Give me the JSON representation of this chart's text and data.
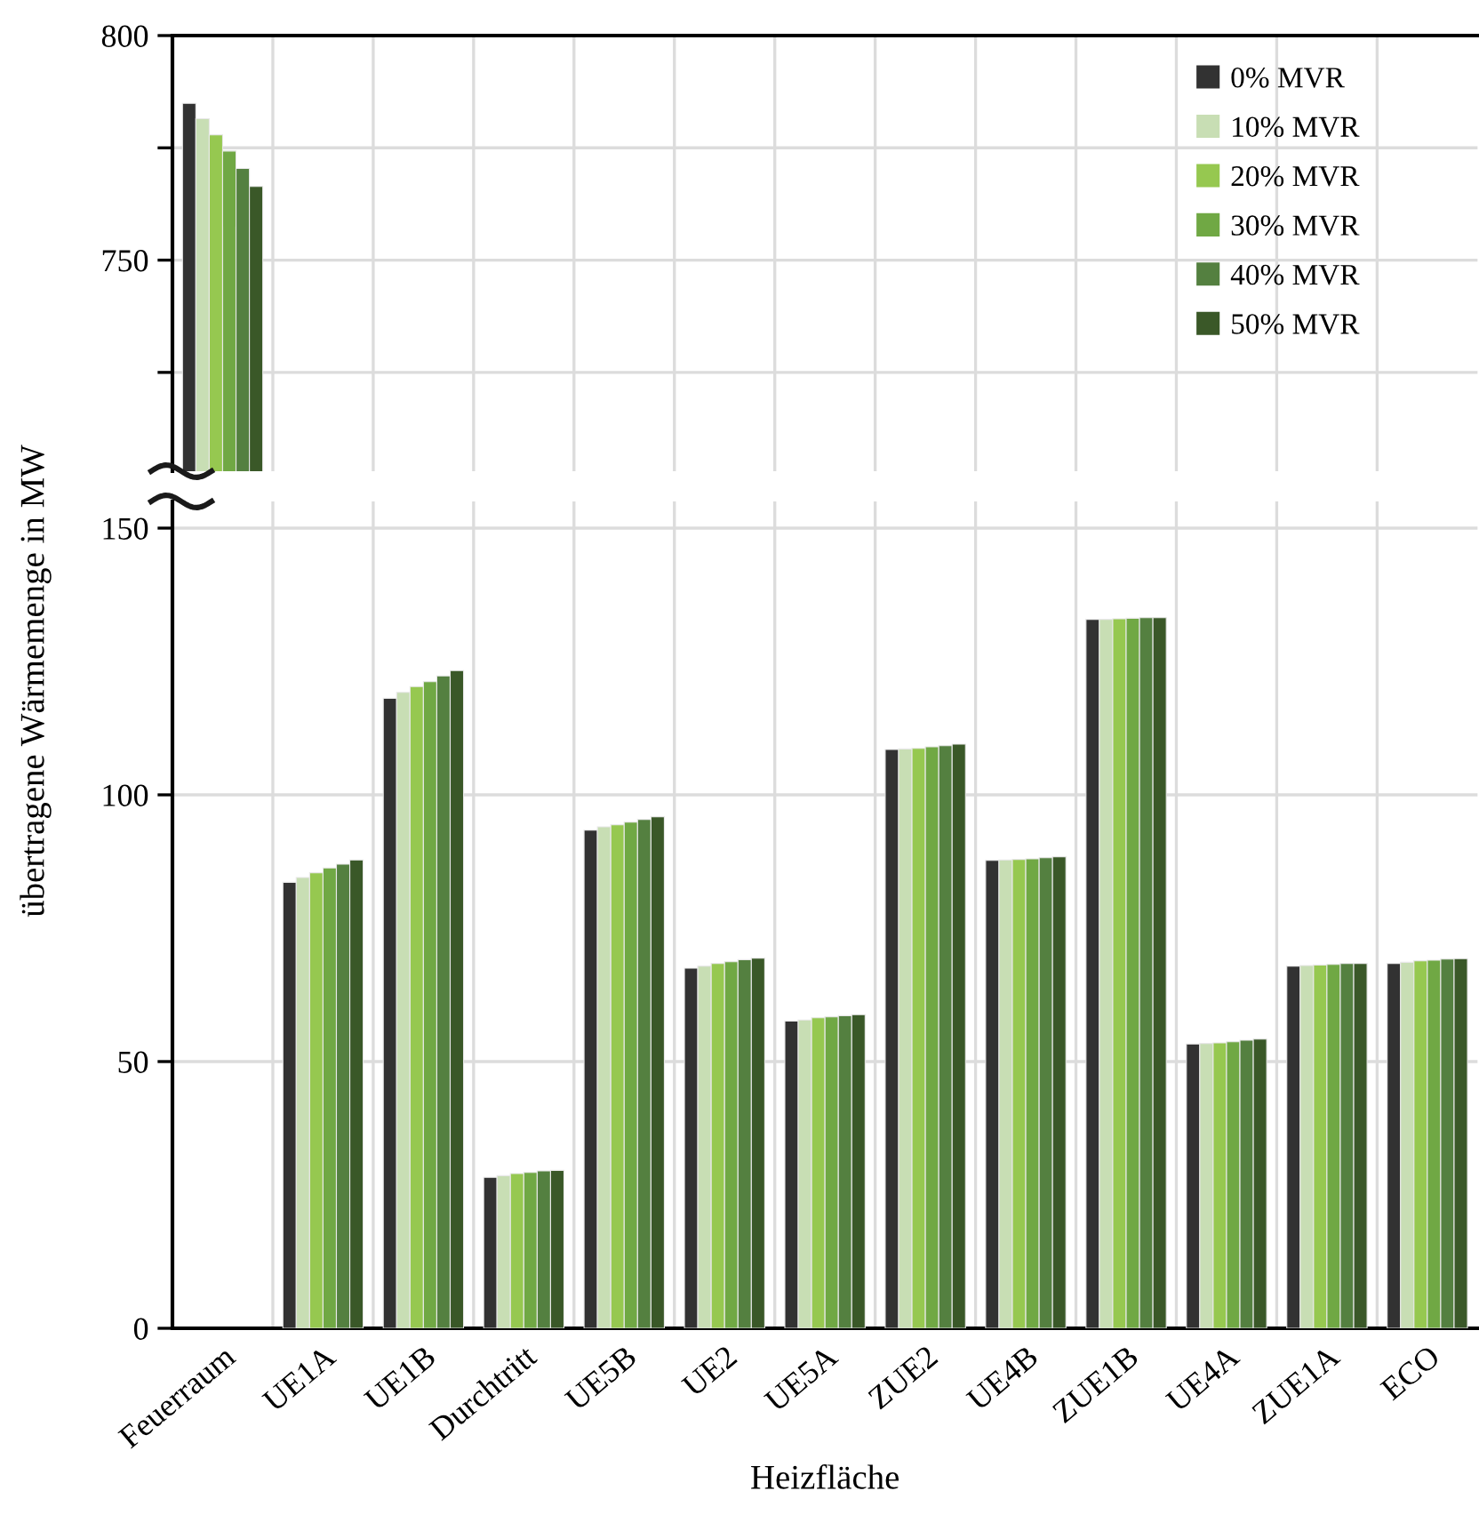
{
  "chart_data": [
    {
      "type": "bar",
      "categories": [
        null,
        null,
        null,
        null,
        null,
        null,
        null,
        null,
        null,
        null,
        null,
        null,
        null
      ],
      "series": [
        {
          "name": "0% MVR",
          "color": "#323232",
          "values": [
            784.9,
            null,
            null,
            null,
            null,
            null,
            null,
            null,
            null,
            null,
            null,
            null,
            null
          ]
        },
        {
          "name": "10% MVR",
          "color": "#c8deb4",
          "values": [
            781.5,
            null,
            null,
            null,
            null,
            null,
            null,
            null,
            null,
            null,
            null,
            null,
            null
          ]
        },
        {
          "name": "20% MVR",
          "color": "#96c850",
          "values": [
            777.9,
            null,
            null,
            null,
            null,
            null,
            null,
            null,
            null,
            null,
            null,
            null,
            null
          ]
        },
        {
          "name": "30% MVR",
          "color": "#70a844",
          "values": [
            774.3,
            null,
            null,
            null,
            null,
            null,
            null,
            null,
            null,
            null,
            null,
            null,
            null
          ]
        },
        {
          "name": "40% MVR",
          "color": "#548040",
          "values": [
            770.4,
            null,
            null,
            null,
            null,
            null,
            null,
            null,
            null,
            null,
            null,
            null,
            null
          ]
        },
        {
          "name": "50% MVR",
          "color": "#3a5828",
          "values": [
            766.4,
            null,
            null,
            null,
            null,
            null,
            null,
            null,
            null,
            null,
            null,
            null,
            null
          ]
        }
      ],
      "ylim": [
        703,
        800
      ],
      "yticks": [
        {
          "value": 725,
          "label": null
        },
        750,
        {
          "value": 775,
          "label": null
        },
        800
      ],
      "grid": true,
      "legend": "top right",
      "tick_labels": "y"
    },
    {
      "type": "bar",
      "categories": [
        "Feuerraum",
        "UE1A",
        "UE1B",
        "Durchtritt",
        "UE5B",
        "UE2",
        "UE5A",
        "ZUE2",
        "UE4B",
        "ZUE1B",
        "UE4A",
        "ZUE1A",
        "ECO"
      ],
      "series": [
        {
          "color": "#323232",
          "values": [
            null,
            83.6,
            118.1,
            28.3,
            93.4,
            67.5,
            57.6,
            108.5,
            87.7,
            132.9,
            53.3,
            67.9,
            68.4
          ]
        },
        {
          "color": "#c8deb4",
          "values": [
            null,
            84.5,
            119.2,
            28.6,
            94.0,
            67.9,
            57.8,
            108.6,
            87.8,
            132.9,
            53.4,
            68.0,
            68.6
          ]
        },
        {
          "color": "#96c850",
          "values": [
            null,
            85.4,
            120.3,
            29.0,
            94.4,
            68.4,
            58.2,
            108.7,
            87.9,
            133.0,
            53.5,
            68.1,
            68.9
          ]
        },
        {
          "color": "#70a844",
          "values": [
            null,
            86.3,
            121.2,
            29.2,
            94.9,
            68.7,
            58.4,
            109.0,
            88.0,
            133.1,
            53.7,
            68.2,
            69.0
          ]
        },
        {
          "color": "#548040",
          "values": [
            null,
            87.0,
            122.3,
            29.5,
            95.4,
            69.1,
            58.6,
            109.2,
            88.2,
            133.2,
            54.0,
            68.4,
            69.2
          ]
        },
        {
          "color": "#3a5828",
          "values": [
            null,
            87.8,
            123.3,
            29.6,
            95.9,
            69.4,
            58.8,
            109.5,
            88.4,
            133.2,
            54.2,
            68.4,
            69.3
          ]
        }
      ],
      "ylim": [
        0,
        155
      ],
      "yticks": [
        0,
        50,
        100,
        150
      ],
      "xlabel": "Heizfläche",
      "ylabel": "übertragene Wärmemenge in MW",
      "grid": true
    }
  ]
}
